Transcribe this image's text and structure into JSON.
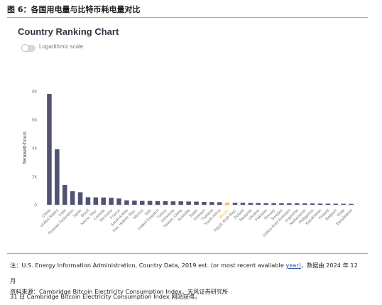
{
  "figure": {
    "header": "图 6：各国用电量与比特币耗电量对比",
    "note_line1_prefix": "注：U.S. Energy Information Administration, Country Data, 2019 est. (or most recent available ",
    "note_line1_link": "year)",
    "note_line1_suffix": "，数据由 2024 年 12 月",
    "note_line2": "31 日 Cambridge Bitcoin Electricity Consumption Index 网站获得。",
    "source": "资料来源：Cambridge Bitcoin Electricity Consumption Index，天风证券研究所"
  },
  "controls": {
    "log_toggle_label": "Logarithmic scale",
    "log_toggle_on": false
  },
  "colors": {
    "bar": "#525273",
    "highlight": "#f5c242",
    "axis_text": "#777777",
    "rule": "#c9a464"
  },
  "chart_data": {
    "type": "bar",
    "title": "Country Ranking Chart",
    "xlabel": "",
    "ylabel": "Terawatt-hours",
    "ylim": [
      0,
      8000
    ],
    "yticks": [
      0,
      2000,
      4000,
      6000,
      8000
    ],
    "ytick_labels": [
      "0",
      "2k",
      "4k",
      "6k",
      "8k"
    ],
    "grid": false,
    "highlight_category": "Bitcoin",
    "categories": [
      "China",
      "United States",
      "India",
      "Russian Federation",
      "Japan",
      "Brazil",
      "Korea, Rep.",
      "Canada",
      "Germany",
      "France",
      "Saudi Arabia",
      "Iran, Islamic Rep.",
      "Mexico",
      "Italy",
      "United Kingdom",
      "Turkey",
      "Indonesia",
      "Taiwan, China",
      "Australia",
      "Spain",
      "Vietnam",
      "Thailand",
      "South Africa",
      "Bitcoin",
      "Egypt, Arab Rep.",
      "Poland",
      "Malaysia",
      "Ukraine",
      "Pakistan",
      "Norway",
      "Sweden",
      "United Arab Emirates",
      "Argentina",
      "Netherlands",
      "Philippines",
      "Kazakhstan",
      "Finland",
      "Belgium",
      "Chile",
      "Bangladesh"
    ],
    "values": [
      7800,
      3900,
      1400,
      950,
      880,
      530,
      520,
      510,
      490,
      440,
      310,
      290,
      270,
      270,
      260,
      250,
      240,
      240,
      230,
      220,
      200,
      190,
      180,
      150,
      140,
      140,
      130,
      120,
      110,
      110,
      100,
      100,
      100,
      95,
      90,
      85,
      80,
      75,
      70,
      65
    ]
  }
}
